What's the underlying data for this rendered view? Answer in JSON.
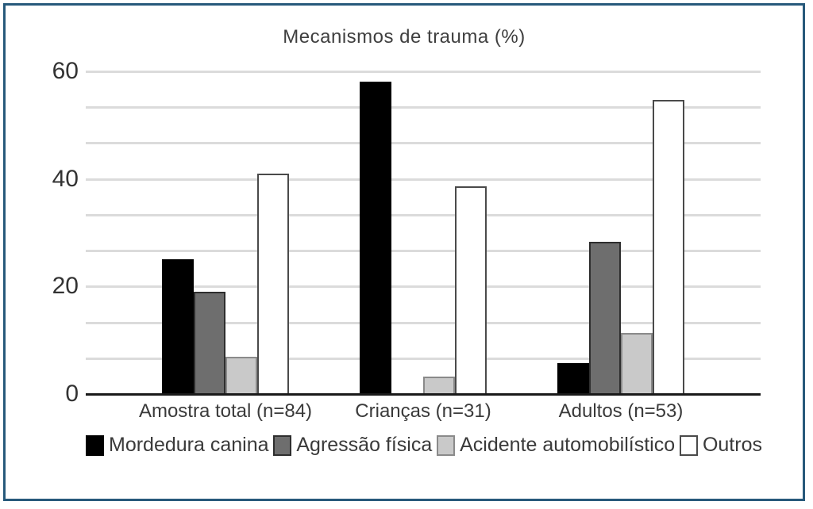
{
  "figure": {
    "border_color": "#27597B",
    "background_color": "#FFFFFF",
    "text_color": "#3A3A3A",
    "gridline_color": "#DBDBDB",
    "axis_color": "#1A1A1A"
  },
  "chart_data": {
    "type": "bar",
    "title": "Mecanismos de trauma (%)",
    "xlabel": "",
    "ylabel": "",
    "ylim": [
      0,
      60
    ],
    "yticks": [
      0,
      20,
      40,
      60
    ],
    "minor_gridline_step": 6.667,
    "grid": true,
    "legend_position": "bottom",
    "categories": [
      "Amostra total (n=84)",
      "Crianças (n=31)",
      "Adultos (n=53)"
    ],
    "series": [
      {
        "name": "Mordedura canina",
        "color": "#000000",
        "border": "#000000",
        "values": [
          25.0,
          58.1,
          5.7
        ]
      },
      {
        "name": "Agressão física",
        "color": "#6E6E6E",
        "border": "#2E2E2E",
        "values": [
          19.0,
          0.0,
          28.3
        ]
      },
      {
        "name": "Acidente automobilístico",
        "color": "#C9C9C9",
        "border": "#8A8A8A",
        "values": [
          7.0,
          3.2,
          11.3
        ]
      },
      {
        "name": "Outros",
        "color": "#FFFFFF",
        "border": "#4A4A4A",
        "values": [
          41.0,
          38.7,
          54.7
        ]
      }
    ]
  }
}
